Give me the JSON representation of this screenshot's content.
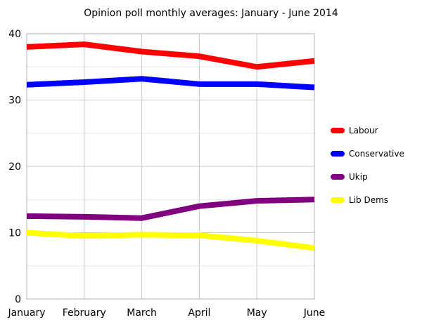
{
  "chart_data": {
    "type": "line",
    "title": "Opinion poll monthly averages: January - June 2014",
    "xlabel": "",
    "ylabel": "",
    "categories": [
      "January",
      "February",
      "March",
      "April",
      "May",
      "June"
    ],
    "ylim": [
      0,
      40
    ],
    "yticks": [
      0,
      10,
      20,
      30,
      40
    ],
    "grid": true,
    "legend_position": "right",
    "series": [
      {
        "name": "Labour",
        "color": "#ff0000",
        "values": [
          38.0,
          38.4,
          37.3,
          36.6,
          35.0,
          35.9
        ]
      },
      {
        "name": "Conservative",
        "color": "#0000ff",
        "values": [
          32.3,
          32.7,
          33.2,
          32.4,
          32.4,
          31.9
        ]
      },
      {
        "name": "Ukip",
        "color": "#800080",
        "values": [
          12.5,
          12.4,
          12.2,
          14.0,
          14.8,
          15.0
        ]
      },
      {
        "name": "Lib Dems",
        "color": "#ffff00",
        "values": [
          10.0,
          9.5,
          9.7,
          9.6,
          8.8,
          7.7
        ]
      }
    ]
  }
}
